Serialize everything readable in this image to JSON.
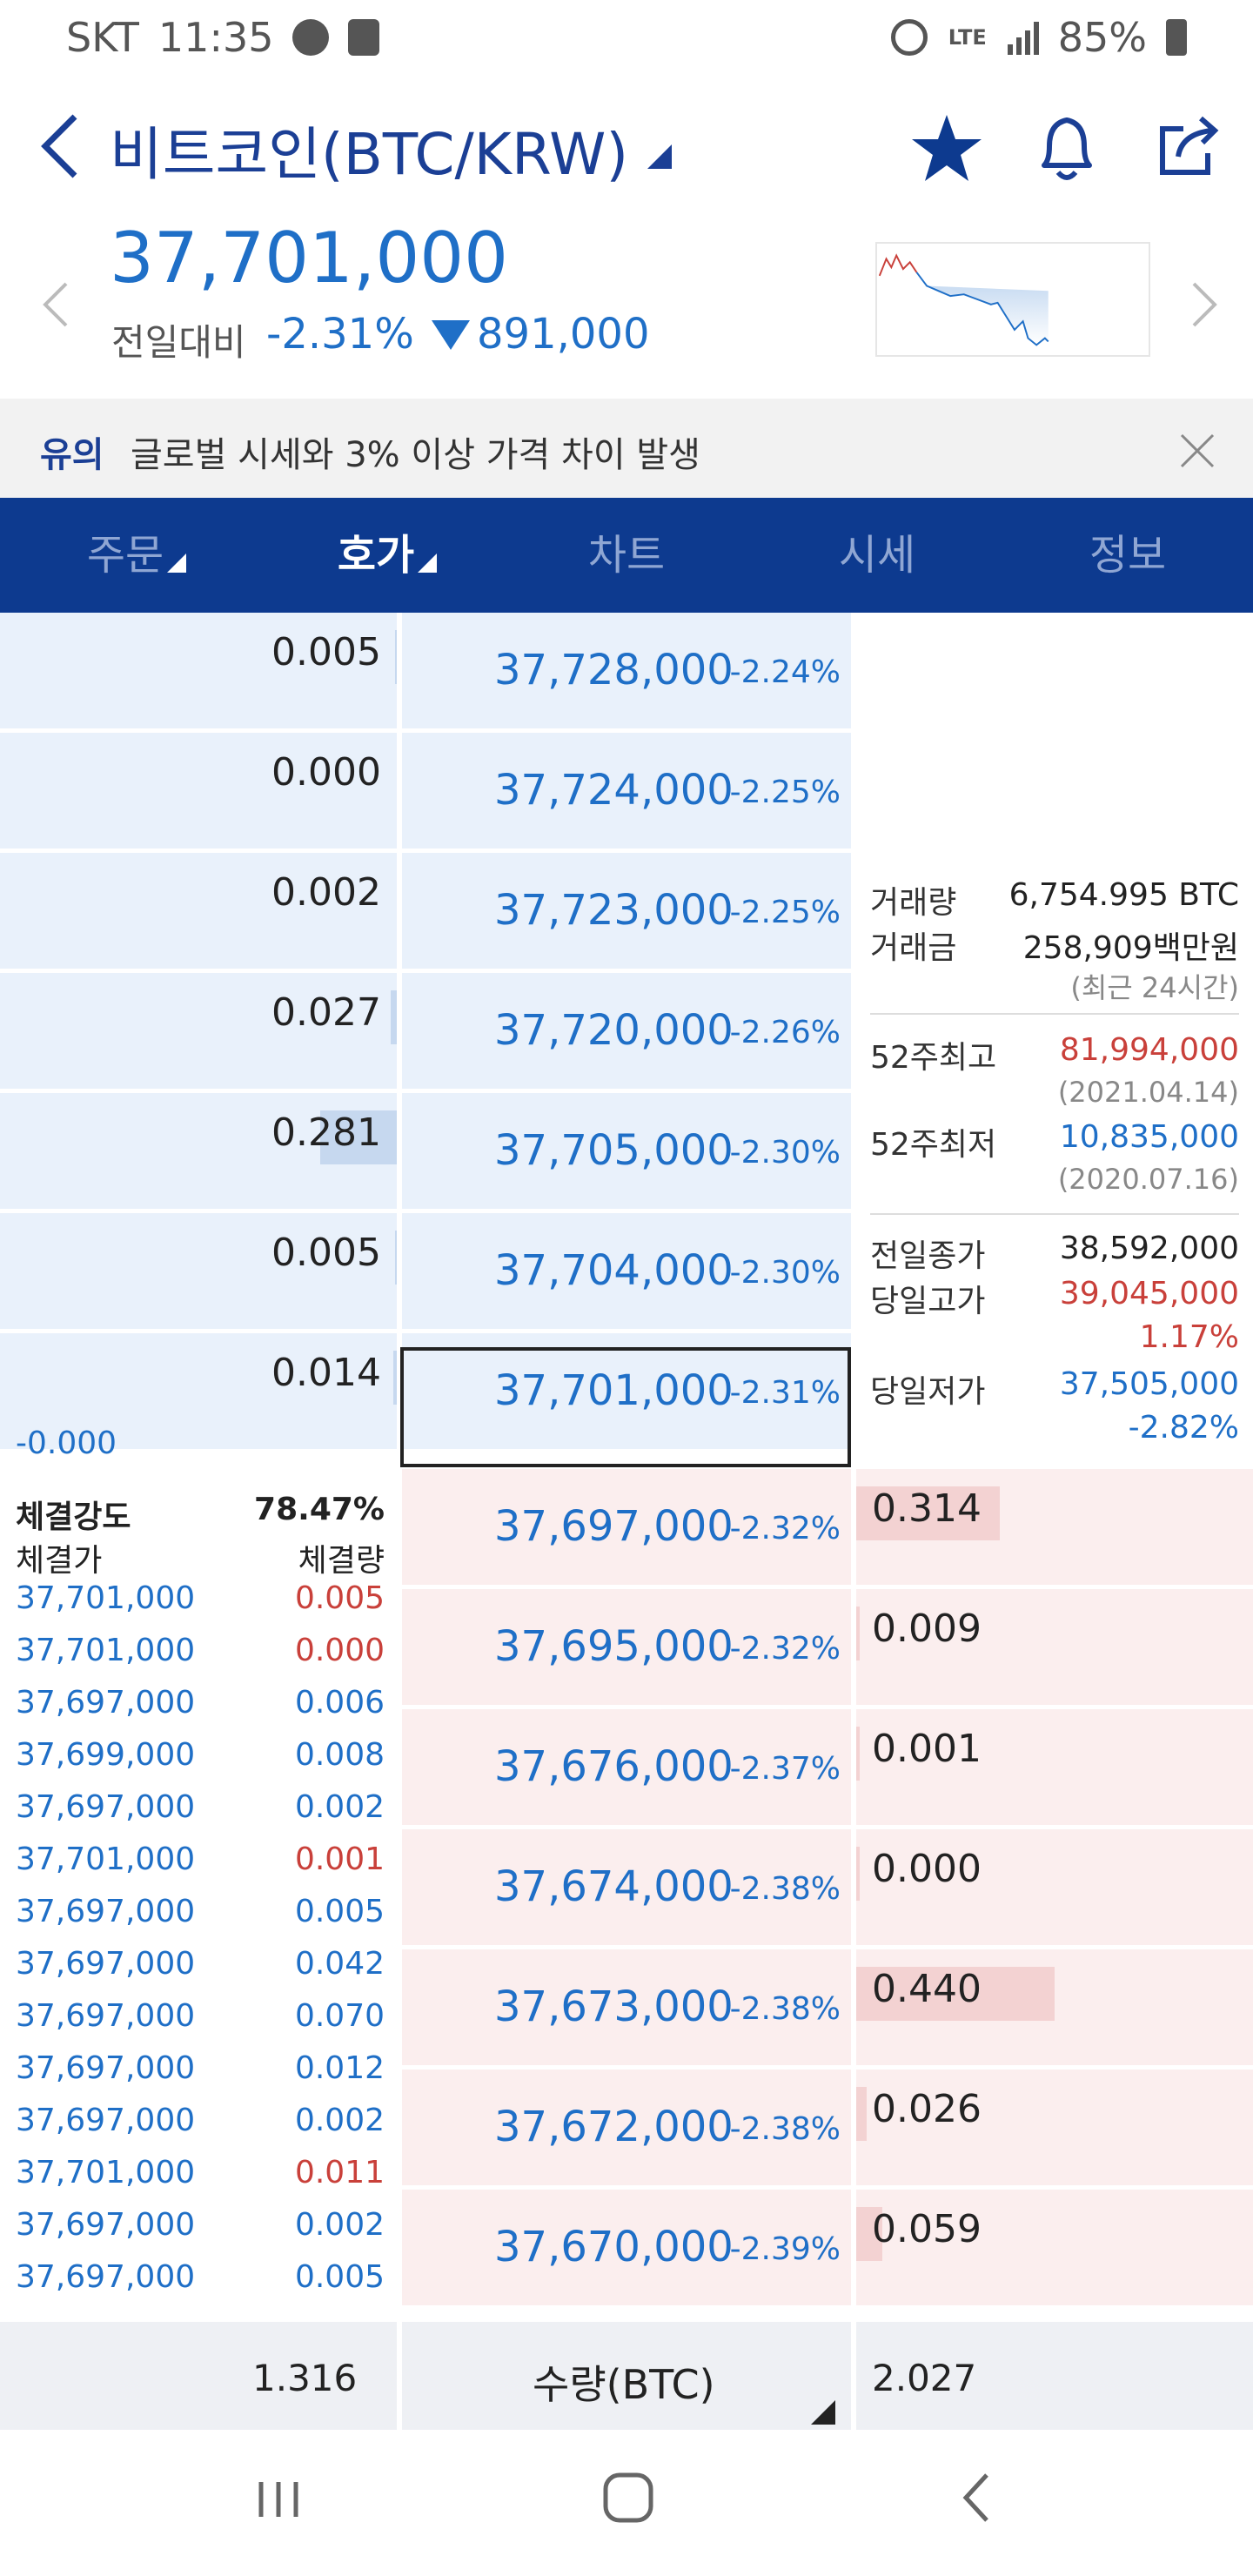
{
  "status_bar": {
    "carrier": "SKT",
    "time": "11:35",
    "network": "LTE",
    "battery": "85%"
  },
  "header": {
    "title": "비트코인(BTC/KRW)",
    "price": "37,701,000",
    "prev_label": "전일대비",
    "change_pct": "-2.31%",
    "change_amount": "891,000"
  },
  "notice": {
    "tag": "유의",
    "text": "글로벌 시세와 3% 이상 가격 차이 발생"
  },
  "tabs": [
    "주문",
    "호가",
    "차트",
    "시세",
    "정보"
  ],
  "active_tab": "호가",
  "asks": [
    {
      "qty": "0.005",
      "price": "37,728,000",
      "pct": "-2.24%",
      "bar": 0.01
    },
    {
      "qty": "0.000",
      "price": "37,724,000",
      "pct": "-2.25%",
      "bar": 0.0
    },
    {
      "qty": "0.002",
      "price": "37,723,000",
      "pct": "-2.25%",
      "bar": 0.0
    },
    {
      "qty": "0.027",
      "price": "37,720,000",
      "pct": "-2.26%",
      "bar": 0.04
    },
    {
      "qty": "0.281",
      "price": "37,705,000",
      "pct": "-2.30%",
      "bar": 0.48
    },
    {
      "qty": "0.005",
      "price": "37,704,000",
      "pct": "-2.30%",
      "bar": 0.01
    },
    {
      "qty": "0.014",
      "price": "37,701,000",
      "pct": "-2.31%",
      "bar": 0.02
    }
  ],
  "ask_extra": "-0.000",
  "bids": [
    {
      "price": "37,697,000",
      "pct": "-2.32%",
      "qty": "0.314",
      "bar": 0.55
    },
    {
      "price": "37,695,000",
      "pct": "-2.32%",
      "qty": "0.009",
      "bar": 0.01
    },
    {
      "price": "37,676,000",
      "pct": "-2.37%",
      "qty": "0.001",
      "bar": 0.0
    },
    {
      "price": "37,674,000",
      "pct": "-2.38%",
      "qty": "0.000",
      "bar": 0.0
    },
    {
      "price": "37,673,000",
      "pct": "-2.38%",
      "qty": "0.440",
      "bar": 0.76
    },
    {
      "price": "37,672,000",
      "pct": "-2.38%",
      "qty": "0.026",
      "bar": 0.04
    },
    {
      "price": "37,670,000",
      "pct": "-2.39%",
      "qty": "0.059",
      "bar": 0.1
    }
  ],
  "info": {
    "volume_label": "거래량",
    "volume": "6,754.995 BTC",
    "amount_label": "거래금",
    "amount": "258,909백만원",
    "period": "(최근 24시간)",
    "high52_label": "52주최고",
    "high52": "81,994,000",
    "high52_date": "(2021.04.14)",
    "low52_label": "52주최저",
    "low52": "10,835,000",
    "low52_date": "(2020.07.16)",
    "prev_close_label": "전일종가",
    "prev_close": "38,592,000",
    "day_high_label": "당일고가",
    "day_high": "39,045,000",
    "day_high_pct": "1.17%",
    "day_low_label": "당일저가",
    "day_low": "37,505,000",
    "day_low_pct": "-2.82%"
  },
  "trades": {
    "strength_label": "체결강도",
    "strength": "78.47%",
    "price_label": "체결가",
    "qty_label": "체결량",
    "rows": [
      {
        "price": "37,701,000",
        "qty": "0.005",
        "side": "buy"
      },
      {
        "price": "37,701,000",
        "qty": "0.000",
        "side": "buy"
      },
      {
        "price": "37,697,000",
        "qty": "0.006",
        "side": "sell"
      },
      {
        "price": "37,699,000",
        "qty": "0.008",
        "side": "sell"
      },
      {
        "price": "37,697,000",
        "qty": "0.002",
        "side": "sell"
      },
      {
        "price": "37,701,000",
        "qty": "0.001",
        "side": "buy"
      },
      {
        "price": "37,697,000",
        "qty": "0.005",
        "side": "sell"
      },
      {
        "price": "37,697,000",
        "qty": "0.042",
        "side": "sell"
      },
      {
        "price": "37,697,000",
        "qty": "0.070",
        "side": "sell"
      },
      {
        "price": "37,697,000",
        "qty": "0.012",
        "side": "sell"
      },
      {
        "price": "37,697,000",
        "qty": "0.002",
        "side": "sell"
      },
      {
        "price": "37,701,000",
        "qty": "0.011",
        "side": "buy"
      },
      {
        "price": "37,697,000",
        "qty": "0.002",
        "side": "sell"
      },
      {
        "price": "37,697,000",
        "qty": "0.005",
        "side": "sell"
      }
    ]
  },
  "footer": {
    "ask_total": "1.316",
    "unit_label": "수량(BTC)",
    "bid_total": "2.027"
  },
  "colors": {
    "blue": "#1f6fc7",
    "red": "#c9403a",
    "navy": "#0d3a8f"
  }
}
